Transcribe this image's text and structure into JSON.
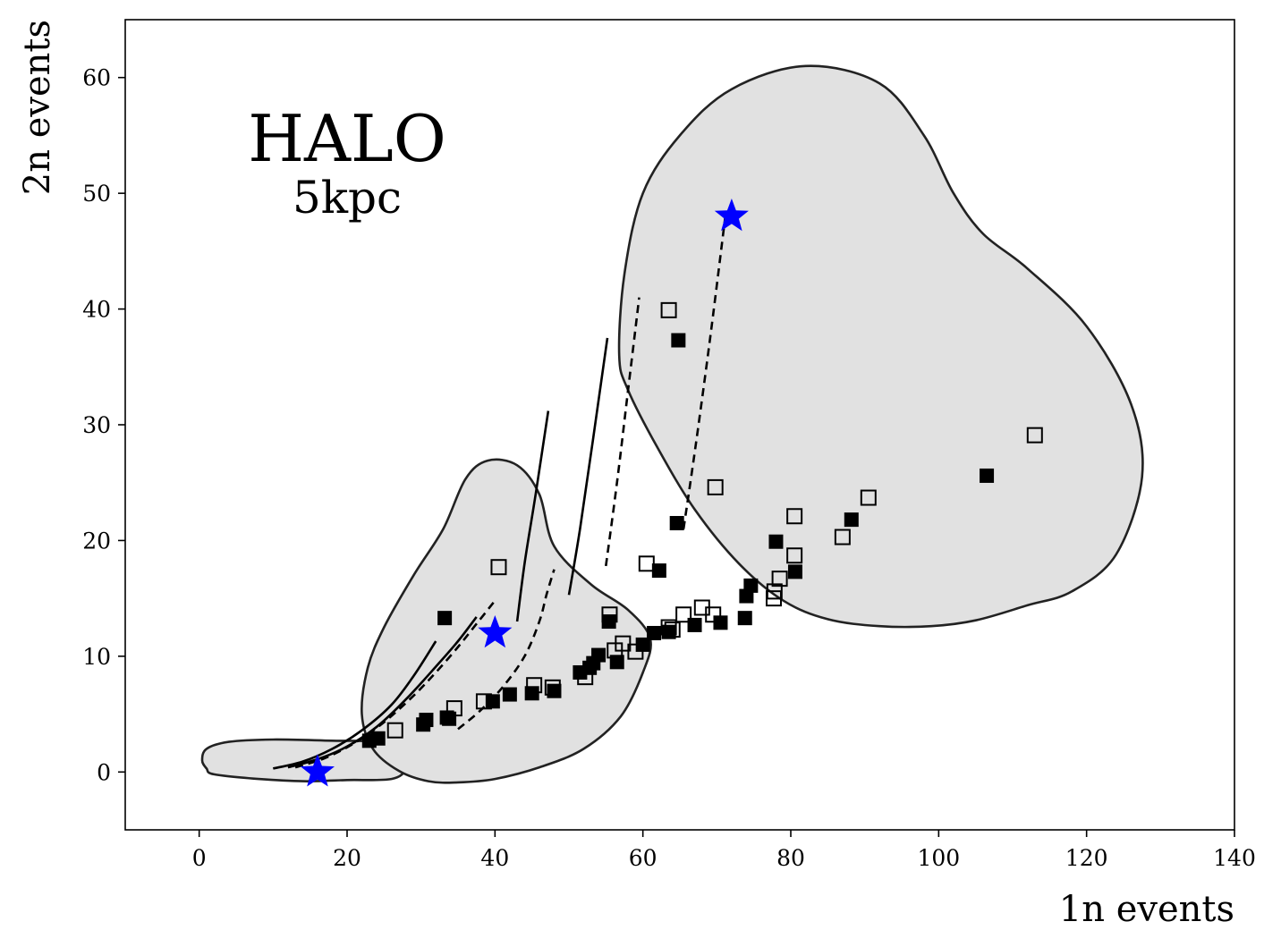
{
  "chart_data": {
    "type": "scatter",
    "title": "",
    "xlabel": "1n events",
    "ylabel": "2n events",
    "xlim": [
      -10,
      140
    ],
    "ylim": [
      -5,
      65
    ],
    "xticks": [
      0,
      20,
      40,
      60,
      80,
      100,
      120,
      140
    ],
    "yticks": [
      0,
      10,
      20,
      30,
      40,
      50,
      60
    ],
    "grid": false,
    "legend": "none",
    "annotations": {
      "main": "HALO",
      "sub": "5kpc"
    },
    "colors": {
      "region_fill": "#e1e1e1",
      "region_edge": "#222222",
      "star": "#0000ff",
      "marker": "#000000"
    },
    "regions": [
      {
        "name": "",
        "boundary": [
          [
            1,
            0.3
          ],
          [
            2,
            -0.2
          ],
          [
            8,
            -0.6
          ],
          [
            14,
            -0.8
          ],
          [
            20,
            -0.7
          ],
          [
            26,
            -0.6
          ],
          [
            28,
            0.3
          ],
          [
            28,
            1.8
          ],
          [
            24,
            2.6
          ],
          [
            18,
            2.7
          ],
          [
            10,
            2.8
          ],
          [
            4,
            2.6
          ],
          [
            1,
            2.0
          ],
          [
            0.4,
            1.0
          ]
        ]
      },
      {
        "name": "",
        "boundary": [
          [
            35,
            -0.9
          ],
          [
            40,
            -0.6
          ],
          [
            46,
            0.4
          ],
          [
            52,
            2.0
          ],
          [
            57,
            4.8
          ],
          [
            60,
            8.6
          ],
          [
            61,
            11.5
          ],
          [
            58,
            14.0
          ],
          [
            53,
            16.2
          ],
          [
            48,
            19.5
          ],
          [
            46,
            24
          ],
          [
            43,
            26.5
          ],
          [
            39,
            26.9
          ],
          [
            36,
            25.3
          ],
          [
            33,
            21
          ],
          [
            29,
            17.0
          ],
          [
            25,
            12.5
          ],
          [
            22.8,
            9
          ],
          [
            22.0,
            5
          ],
          [
            23.5,
            2
          ],
          [
            27,
            0.1
          ],
          [
            31,
            -0.8
          ]
        ]
      },
      {
        "name": "",
        "boundary": [
          [
            99,
            12.6
          ],
          [
            105,
            13.1
          ],
          [
            112,
            14.4
          ],
          [
            118,
            15.6
          ],
          [
            124,
            18.8
          ],
          [
            127.5,
            25.5
          ],
          [
            126,
            31.8
          ],
          [
            120,
            38.5
          ],
          [
            112,
            43.5
          ],
          [
            106,
            46.5
          ],
          [
            102,
            50
          ],
          [
            98,
            55
          ],
          [
            92,
            59.5
          ],
          [
            82,
            61
          ],
          [
            72,
            59
          ],
          [
            65,
            55
          ],
          [
            60,
            50
          ],
          [
            57.5,
            43
          ],
          [
            56.8,
            36
          ],
          [
            58,
            33
          ],
          [
            62,
            28
          ],
          [
            67,
            22.7
          ],
          [
            73,
            18
          ],
          [
            79,
            14.8
          ],
          [
            85,
            13.2
          ],
          [
            92,
            12.6
          ]
        ]
      }
    ],
    "series": [
      {
        "name": "",
        "marker": "filled-square",
        "points": [
          [
            33.2,
            13.3
          ],
          [
            23.0,
            2.7
          ],
          [
            24.2,
            2.9
          ],
          [
            30.3,
            4.1
          ],
          [
            30.7,
            4.5
          ],
          [
            33.5,
            4.7
          ],
          [
            33.8,
            4.6
          ],
          [
            39.7,
            6.1
          ],
          [
            42.0,
            6.7
          ],
          [
            45.0,
            6.8
          ],
          [
            48.0,
            7.0
          ],
          [
            51.5,
            8.6
          ],
          [
            52.8,
            9.0
          ],
          [
            53.3,
            9.4
          ],
          [
            54.0,
            10.1
          ],
          [
            55.4,
            13.0
          ],
          [
            56.5,
            9.5
          ],
          [
            60.0,
            11.0
          ],
          [
            61.5,
            12.0
          ],
          [
            62.2,
            17.4
          ],
          [
            63.5,
            12.1
          ],
          [
            64.6,
            21.5
          ],
          [
            64.8,
            37.3
          ],
          [
            67.0,
            12.7
          ],
          [
            70.5,
            12.9
          ],
          [
            73.8,
            13.3
          ],
          [
            74.0,
            15.2
          ],
          [
            74.6,
            16.1
          ],
          [
            78.0,
            19.9
          ],
          [
            80.6,
            17.3
          ],
          [
            88.2,
            21.8
          ],
          [
            106.5,
            25.6
          ]
        ]
      },
      {
        "name": "",
        "marker": "open-square",
        "points": [
          [
            40.5,
            17.7
          ],
          [
            26.5,
            3.6
          ],
          [
            34.5,
            5.5
          ],
          [
            38.5,
            6.1
          ],
          [
            45.3,
            7.5
          ],
          [
            47.8,
            7.3
          ],
          [
            52.2,
            8.2
          ],
          [
            55.5,
            13.6
          ],
          [
            56.2,
            10.5
          ],
          [
            57.3,
            11.1
          ],
          [
            59.0,
            10.4
          ],
          [
            60.5,
            18.0
          ],
          [
            63.5,
            39.9
          ],
          [
            63.5,
            12.5
          ],
          [
            64.0,
            12.3
          ],
          [
            65.5,
            13.6
          ],
          [
            68.0,
            14.2
          ],
          [
            69.5,
            13.6
          ],
          [
            69.8,
            24.6
          ],
          [
            77.7,
            15.0
          ],
          [
            77.8,
            15.6
          ],
          [
            78.5,
            16.7
          ],
          [
            80.5,
            22.1
          ],
          [
            80.5,
            18.7
          ],
          [
            87.0,
            20.3
          ],
          [
            90.5,
            23.7
          ],
          [
            113.0,
            29.1
          ]
        ]
      },
      {
        "name": "",
        "marker": "blue-star",
        "points": [
          [
            16,
            0
          ],
          [
            40,
            12
          ],
          [
            72,
            48
          ]
        ]
      }
    ],
    "tracks": [
      {
        "style": "solid",
        "points": [
          [
            10,
            0.3
          ],
          [
            14,
            0.9
          ],
          [
            18,
            2.0
          ],
          [
            22,
            3.6
          ],
          [
            26,
            5.8
          ],
          [
            29,
            8.3
          ],
          [
            32,
            11.3
          ]
        ]
      },
      {
        "style": "solid",
        "points": [
          [
            12,
            0.4
          ],
          [
            16,
            1.1
          ],
          [
            20,
            2.2
          ],
          [
            24,
            3.9
          ],
          [
            28,
            6.3
          ],
          [
            32,
            9.1
          ],
          [
            35,
            11.3
          ],
          [
            37.5,
            13.4
          ]
        ]
      },
      {
        "style": "dashed",
        "points": [
          [
            13,
            0.4
          ],
          [
            17,
            1.2
          ],
          [
            21,
            2.5
          ],
          [
            25,
            4.3
          ],
          [
            29,
            6.6
          ],
          [
            32,
            8.6
          ],
          [
            35,
            10.8
          ],
          [
            37.5,
            12.8
          ],
          [
            40,
            14.8
          ]
        ]
      },
      {
        "style": "dashed",
        "points": [
          [
            35,
            3.7
          ],
          [
            38,
            5.3
          ],
          [
            41,
            7.3
          ],
          [
            44,
            10.0
          ],
          [
            46,
            13.0
          ],
          [
            47,
            15.4
          ],
          [
            48,
            17.5
          ]
        ]
      },
      {
        "style": "solid",
        "points": [
          [
            43,
            13.0
          ],
          [
            44,
            18.0
          ],
          [
            45.5,
            24.0
          ],
          [
            47.2,
            31.2
          ]
        ]
      },
      {
        "style": "solid",
        "points": [
          [
            50,
            15.3
          ],
          [
            51.5,
            21.0
          ],
          [
            53.2,
            28.5
          ],
          [
            55.2,
            37.5
          ]
        ]
      },
      {
        "style": "dashed",
        "points": [
          [
            55,
            17.8
          ],
          [
            56.5,
            25.0
          ],
          [
            58,
            33.0
          ],
          [
            59.5,
            41.0
          ]
        ]
      },
      {
        "style": "dashed",
        "points": [
          [
            65.5,
            21.0
          ],
          [
            67.2,
            28.5
          ],
          [
            69.2,
            38.0
          ],
          [
            71.2,
            48.3
          ]
        ]
      }
    ]
  }
}
